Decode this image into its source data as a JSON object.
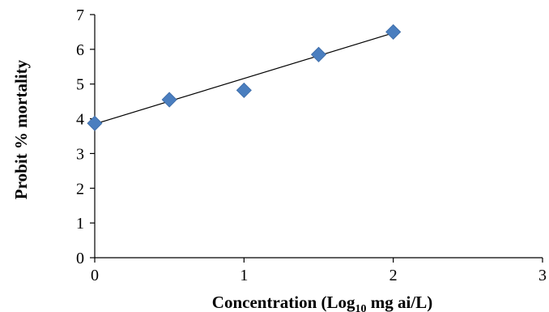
{
  "chart_data": {
    "type": "scatter",
    "title": "",
    "xlabel": "Concentration (Log",
    "xlabel_subscript": "10",
    "xlabel_suffix": " mg ai/L)",
    "ylabel": "Probit % mortality",
    "xlim": [
      0,
      3
    ],
    "ylim": [
      0,
      7
    ],
    "xticks": [
      "0",
      "1",
      "2",
      "3"
    ],
    "yticks": [
      "0",
      "1",
      "2",
      "3",
      "4",
      "5",
      "6",
      "7"
    ],
    "grid": false,
    "legend": "none",
    "series": [
      {
        "x": [
          0,
          0.5,
          1,
          1.5,
          2
        ],
        "y": [
          3.87,
          4.55,
          4.82,
          5.85,
          6.5
        ],
        "marker": "diamond",
        "color": "#4a7ebf"
      }
    ],
    "trendline": {
      "type": "linear",
      "x": [
        0,
        2
      ],
      "y": [
        3.85,
        6.47
      ],
      "color": "#000000"
    }
  }
}
